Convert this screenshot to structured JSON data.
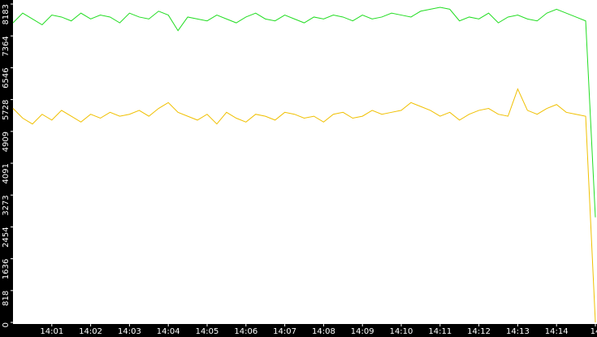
{
  "chart_data": {
    "type": "line",
    "x": [
      0,
      0.25,
      0.5,
      0.75,
      1,
      1.25,
      1.5,
      1.75,
      2,
      2.25,
      2.5,
      2.75,
      3,
      3.25,
      3.5,
      3.75,
      4,
      4.25,
      4.5,
      4.75,
      5,
      5.25,
      5.5,
      5.75,
      6,
      6.25,
      6.5,
      6.75,
      7,
      7.25,
      7.5,
      7.75,
      8,
      8.25,
      8.5,
      8.75,
      9,
      9.25,
      9.5,
      9.75,
      10,
      10.25,
      10.5,
      10.75,
      11,
      11.25,
      11.5,
      11.75,
      12,
      12.25,
      12.5,
      12.75,
      13,
      13.25,
      13.5,
      13.75,
      14,
      14.25,
      14.5,
      14.75,
      15
    ],
    "series": [
      {
        "color": "#22dd22",
        "values": [
          7700,
          7950,
          7800,
          7650,
          7900,
          7850,
          7750,
          7950,
          7800,
          7900,
          7850,
          7700,
          7950,
          7850,
          7800,
          8000,
          7900,
          7500,
          7850,
          7800,
          7750,
          7900,
          7800,
          7700,
          7850,
          7950,
          7800,
          7750,
          7900,
          7800,
          7700,
          7850,
          7800,
          7900,
          7850,
          7750,
          7900,
          7800,
          7850,
          7950,
          7900,
          7850,
          8000,
          8050,
          8100,
          8050,
          7750,
          7850,
          7800,
          7950,
          7700,
          7850,
          7900,
          7800,
          7750,
          7950,
          8050,
          7950,
          7850,
          7750,
          2700
        ]
      },
      {
        "color": "#f0c000",
        "values": [
          5500,
          5250,
          5100,
          5350,
          5200,
          5450,
          5300,
          5150,
          5350,
          5250,
          5400,
          5300,
          5350,
          5450,
          5300,
          5500,
          5650,
          5400,
          5300,
          5200,
          5350,
          5100,
          5400,
          5250,
          5150,
          5350,
          5300,
          5200,
          5400,
          5350,
          5250,
          5300,
          5150,
          5350,
          5400,
          5250,
          5300,
          5450,
          5350,
          5400,
          5450,
          5650,
          5550,
          5450,
          5300,
          5400,
          5200,
          5350,
          5450,
          5500,
          5350,
          5300,
          6000,
          5450,
          5350,
          5500,
          5600,
          5400,
          5350,
          5300,
          0
        ]
      }
    ],
    "xlim": [
      0,
      15
    ],
    "xticks": [
      {
        "value": 1,
        "label": "14:01"
      },
      {
        "value": 2,
        "label": "14:02"
      },
      {
        "value": 3,
        "label": "14:03"
      },
      {
        "value": 4,
        "label": "14:04"
      },
      {
        "value": 5,
        "label": "14:05"
      },
      {
        "value": 6,
        "label": "14:06"
      },
      {
        "value": 7,
        "label": "14:07"
      },
      {
        "value": 8,
        "label": "14:08"
      },
      {
        "value": 9,
        "label": "14:09"
      },
      {
        "value": 10,
        "label": "14:10"
      },
      {
        "value": 11,
        "label": "14:11"
      },
      {
        "value": 12,
        "label": "14:12"
      },
      {
        "value": 13,
        "label": "14:13"
      },
      {
        "value": 14,
        "label": "14:14"
      },
      {
        "value": 15,
        "label": "14"
      }
    ],
    "ylim": [
      0,
      8183
    ],
    "yticks": [
      0,
      818,
      1636,
      2454,
      3273,
      4091,
      4909,
      5728,
      6546,
      7364,
      8183
    ]
  }
}
